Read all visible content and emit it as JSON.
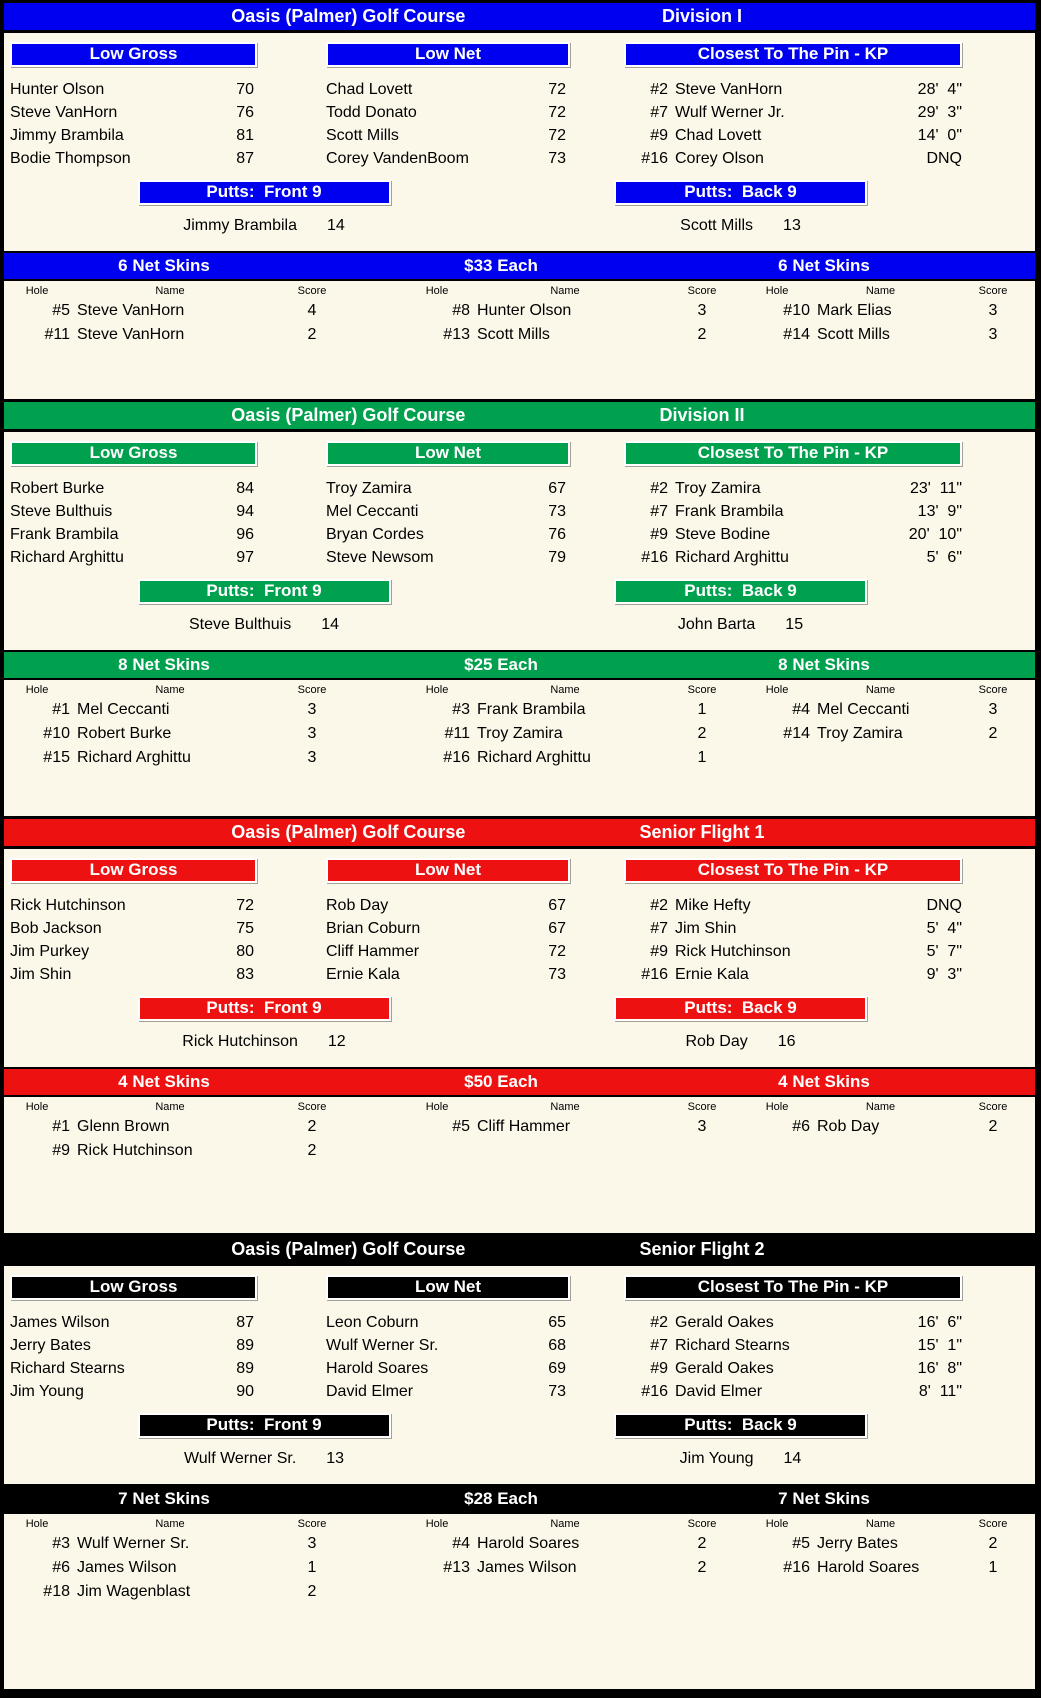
{
  "course_title": "Oasis (Palmer) Golf Course",
  "labels": {
    "low_gross": "Low Gross",
    "low_net": "Low Net",
    "kp": "Closest To The Pin - KP",
    "putts_front": "Putts:  Front 9",
    "putts_back": "Putts:  Back 9",
    "hole": "Hole",
    "name": "Name",
    "score": "Score"
  },
  "sections": [
    {
      "division": "Division I",
      "accent": "#0000F0",
      "low_gross": [
        {
          "name": "Hunter Olson",
          "score": "70"
        },
        {
          "name": "Steve VanHorn",
          "score": "76"
        },
        {
          "name": "Jimmy Brambila",
          "score": "81"
        },
        {
          "name": "Bodie Thompson",
          "score": "87"
        }
      ],
      "low_net": [
        {
          "name": "Chad Lovett",
          "score": "72"
        },
        {
          "name": "Todd Donato",
          "score": "72"
        },
        {
          "name": "Scott Mills",
          "score": "72"
        },
        {
          "name": "Corey VandenBoom",
          "score": "73"
        }
      ],
      "kp": [
        {
          "hole": "#2",
          "name": "Steve VanHorn",
          "dist": "28'  4\""
        },
        {
          "hole": "#7",
          "name": "Wulf Werner Jr.",
          "dist": "29'  3\""
        },
        {
          "hole": "#9",
          "name": "Chad Lovett",
          "dist": "14'  0\""
        },
        {
          "hole": "#16",
          "name": "Corey Olson",
          "dist": "DNQ"
        }
      ],
      "putts_front": {
        "name": "Jimmy Brambila",
        "value": "14"
      },
      "putts_back": {
        "name": "Scott Mills",
        "value": "13"
      },
      "skins_left_label": "6 Net Skins",
      "skins_center_label": "$33 Each",
      "skins_right_label": "6 Net Skins",
      "skins_cols": [
        [
          {
            "hole": "#5",
            "name": "Steve VanHorn",
            "score": "4"
          },
          {
            "hole": "#11",
            "name": "Steve VanHorn",
            "score": "2"
          }
        ],
        [
          {
            "hole": "#8",
            "name": "Hunter Olson",
            "score": "3"
          },
          {
            "hole": "#13",
            "name": "Scott Mills",
            "score": "2"
          }
        ],
        [
          {
            "hole": "#10",
            "name": "Mark Elias",
            "score": "3"
          },
          {
            "hole": "#14",
            "name": "Scott Mills",
            "score": "3"
          }
        ]
      ]
    },
    {
      "division": "Division II",
      "accent": "#00A14E",
      "low_gross": [
        {
          "name": "Robert Burke",
          "score": "84"
        },
        {
          "name": "Steve Bulthuis",
          "score": "94"
        },
        {
          "name": "Frank Brambila",
          "score": "96"
        },
        {
          "name": "Richard Arghittu",
          "score": "97"
        }
      ],
      "low_net": [
        {
          "name": "Troy Zamira",
          "score": "67"
        },
        {
          "name": "Mel Ceccanti",
          "score": "73"
        },
        {
          "name": "Bryan Cordes",
          "score": "76"
        },
        {
          "name": "Steve Newsom",
          "score": "79"
        }
      ],
      "kp": [
        {
          "hole": "#2",
          "name": "Troy Zamira",
          "dist": "23'  11\""
        },
        {
          "hole": "#7",
          "name": "Frank Brambila",
          "dist": "13'  9\""
        },
        {
          "hole": "#9",
          "name": "Steve Bodine",
          "dist": "20'  10\""
        },
        {
          "hole": "#16",
          "name": "Richard Arghittu",
          "dist": "5'  6\""
        }
      ],
      "putts_front": {
        "name": "Steve Bulthuis",
        "value": "14"
      },
      "putts_back": {
        "name": "John Barta",
        "value": "15"
      },
      "skins_left_label": "8 Net Skins",
      "skins_center_label": "$25 Each",
      "skins_right_label": "8 Net Skins",
      "skins_cols": [
        [
          {
            "hole": "#1",
            "name": "Mel Ceccanti",
            "score": "3"
          },
          {
            "hole": "#10",
            "name": "Robert Burke",
            "score": "3"
          },
          {
            "hole": "#15",
            "name": "Richard Arghittu",
            "score": "3"
          }
        ],
        [
          {
            "hole": "#3",
            "name": "Frank Brambila",
            "score": "1"
          },
          {
            "hole": "#11",
            "name": "Troy Zamira",
            "score": "2"
          },
          {
            "hole": "#16",
            "name": "Richard Arghittu",
            "score": "1"
          }
        ],
        [
          {
            "hole": "#4",
            "name": "Mel Ceccanti",
            "score": "3"
          },
          {
            "hole": "#14",
            "name": "Troy Zamira",
            "score": "2"
          }
        ]
      ]
    },
    {
      "division": "Senior Flight 1",
      "accent": "#EE1111",
      "low_gross": [
        {
          "name": "Rick Hutchinson",
          "score": "72"
        },
        {
          "name": "Bob Jackson",
          "score": "75"
        },
        {
          "name": "Jim Purkey",
          "score": "80"
        },
        {
          "name": "Jim Shin",
          "score": "83"
        }
      ],
      "low_net": [
        {
          "name": "Rob Day",
          "score": "67"
        },
        {
          "name": "Brian Coburn",
          "score": "67"
        },
        {
          "name": "Cliff Hammer",
          "score": "72"
        },
        {
          "name": "Ernie Kala",
          "score": "73"
        }
      ],
      "kp": [
        {
          "hole": "#2",
          "name": "Mike Hefty",
          "dist": "DNQ"
        },
        {
          "hole": "#7",
          "name": "Jim Shin",
          "dist": "5'  4\""
        },
        {
          "hole": "#9",
          "name": "Rick Hutchinson",
          "dist": "5'  7\""
        },
        {
          "hole": "#16",
          "name": "Ernie Kala",
          "dist": "9'  3\""
        }
      ],
      "putts_front": {
        "name": "Rick Hutchinson",
        "value": "12"
      },
      "putts_back": {
        "name": "Rob Day",
        "value": "16"
      },
      "skins_left_label": "4 Net Skins",
      "skins_center_label": "$50 Each",
      "skins_right_label": "4 Net Skins",
      "skins_cols": [
        [
          {
            "hole": "#1",
            "name": "Glenn Brown",
            "score": "2"
          },
          {
            "hole": "#9",
            "name": "Rick Hutchinson",
            "score": "2"
          }
        ],
        [
          {
            "hole": "#5",
            "name": "Cliff Hammer",
            "score": "3"
          }
        ],
        [
          {
            "hole": "#6",
            "name": "Rob Day",
            "score": "2"
          }
        ]
      ]
    },
    {
      "division": "Senior Flight 2",
      "accent": "#000000",
      "low_gross": [
        {
          "name": "James Wilson",
          "score": "87"
        },
        {
          "name": "Jerry Bates",
          "score": "89"
        },
        {
          "name": "Richard Stearns",
          "score": "89"
        },
        {
          "name": "Jim Young",
          "score": "90"
        }
      ],
      "low_net": [
        {
          "name": "Leon Coburn",
          "score": "65"
        },
        {
          "name": "Wulf Werner Sr.",
          "score": "68"
        },
        {
          "name": "Harold Soares",
          "score": "69"
        },
        {
          "name": "David Elmer",
          "score": "73"
        }
      ],
      "kp": [
        {
          "hole": "#2",
          "name": "Gerald Oakes",
          "dist": "16'  6\""
        },
        {
          "hole": "#7",
          "name": "Richard Stearns",
          "dist": "15'  1\""
        },
        {
          "hole": "#9",
          "name": "Gerald Oakes",
          "dist": "16'  8\""
        },
        {
          "hole": "#16",
          "name": "David Elmer",
          "dist": "8'  11\""
        }
      ],
      "putts_front": {
        "name": "Wulf Werner Sr.",
        "value": "13"
      },
      "putts_back": {
        "name": "Jim Young",
        "value": "14"
      },
      "skins_left_label": "7 Net Skins",
      "skins_center_label": "$28 Each",
      "skins_right_label": "7 Net Skins",
      "skins_cols": [
        [
          {
            "hole": "#3",
            "name": "Wulf Werner Sr.",
            "score": "3"
          },
          {
            "hole": "#6",
            "name": "James Wilson",
            "score": "1"
          },
          {
            "hole": "#18",
            "name": "Jim Wagenblast",
            "score": "2"
          }
        ],
        [
          {
            "hole": "#4",
            "name": "Harold Soares",
            "score": "2"
          },
          {
            "hole": "#13",
            "name": "James Wilson",
            "score": "2"
          }
        ],
        [
          {
            "hole": "#5",
            "name": "Jerry Bates",
            "score": "2"
          },
          {
            "hole": "#16",
            "name": "Harold Soares",
            "score": "1"
          }
        ]
      ]
    }
  ]
}
